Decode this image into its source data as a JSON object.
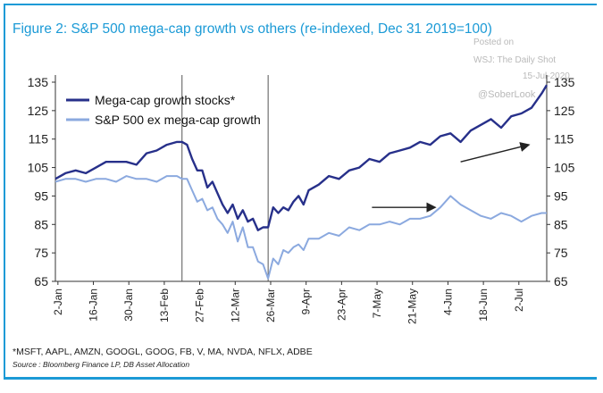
{
  "title": "Figure 2: S&P 500 mega-cap growth vs others (re-indexed, Dec 31 2019=100)",
  "watermark": {
    "posted": "Posted on",
    "outlet": "WSJ: The Daily Shot",
    "date": "15-Jul-2020",
    "handle": "@SoberLook"
  },
  "footnote": "*MSFT, AAPL, AMZN, GOOGL, GOOG, FB, V, MA, NVDA, NFLX, ADBE",
  "source": "Source : Bloomberg Finance LP, DB Asset Allocation",
  "colors": {
    "accent": "#1b9ad6",
    "mega": "#27308a",
    "ex": "#8ba9df"
  },
  "chart_data": {
    "type": "line",
    "ylim": [
      65,
      135
    ],
    "yticks": [
      65,
      75,
      85,
      95,
      105,
      115,
      125,
      135
    ],
    "xlim": [
      0,
      194
    ],
    "xticks": [
      {
        "day": 1,
        "label": "2-Jan"
      },
      {
        "day": 15,
        "label": "16-Jan"
      },
      {
        "day": 29,
        "label": "30-Jan"
      },
      {
        "day": 43,
        "label": "13-Feb"
      },
      {
        "day": 57,
        "label": "27-Feb"
      },
      {
        "day": 71,
        "label": "12-Mar"
      },
      {
        "day": 85,
        "label": "26-Mar"
      },
      {
        "day": 99,
        "label": "9-Apr"
      },
      {
        "day": 113,
        "label": "23-Apr"
      },
      {
        "day": 127,
        "label": "7-May"
      },
      {
        "day": 141,
        "label": "21-May"
      },
      {
        "day": 155,
        "label": "4-Jun"
      },
      {
        "day": 169,
        "label": "18-Jun"
      },
      {
        "day": 183,
        "label": "2-Jul"
      }
    ],
    "vlines": [
      50,
      84
    ],
    "series": [
      {
        "name": "Mega-cap growth stocks*",
        "x": [
          0,
          4,
          8,
          12,
          16,
          20,
          24,
          28,
          32,
          36,
          40,
          44,
          48,
          50,
          52,
          54,
          56,
          58,
          60,
          62,
          64,
          66,
          68,
          70,
          72,
          74,
          76,
          78,
          80,
          82,
          84,
          86,
          88,
          90,
          92,
          94,
          96,
          98,
          100,
          104,
          108,
          112,
          116,
          120,
          124,
          128,
          132,
          136,
          140,
          144,
          148,
          152,
          156,
          160,
          164,
          168,
          172,
          176,
          180,
          184,
          188,
          192,
          194
        ],
        "values": [
          101,
          103,
          104,
          103,
          105,
          107,
          107,
          107,
          106,
          110,
          111,
          113,
          114,
          114,
          113,
          108,
          104,
          104,
          98,
          100,
          96,
          92,
          89,
          92,
          87,
          90,
          86,
          87,
          83,
          84,
          84,
          91,
          89,
          91,
          90,
          93,
          95,
          92,
          97,
          99,
          102,
          101,
          104,
          105,
          108,
          107,
          110,
          111,
          112,
          114,
          113,
          116,
          117,
          114,
          118,
          120,
          122,
          119,
          123,
          124,
          126,
          131,
          134
        ]
      },
      {
        "name": "S&P 500 ex mega-cap growth",
        "x": [
          0,
          4,
          8,
          12,
          16,
          20,
          24,
          28,
          32,
          36,
          40,
          44,
          48,
          50,
          52,
          54,
          56,
          58,
          60,
          62,
          64,
          66,
          68,
          70,
          72,
          74,
          76,
          78,
          80,
          82,
          84,
          86,
          88,
          90,
          92,
          94,
          96,
          98,
          100,
          104,
          108,
          112,
          116,
          120,
          124,
          128,
          132,
          136,
          140,
          144,
          148,
          152,
          156,
          160,
          164,
          168,
          172,
          176,
          180,
          184,
          188,
          192,
          194
        ],
        "values": [
          100,
          101,
          101,
          100,
          101,
          101,
          100,
          102,
          101,
          101,
          100,
          102,
          102,
          101,
          101,
          97,
          93,
          94,
          90,
          91,
          87,
          85,
          82,
          86,
          79,
          84,
          77,
          77,
          72,
          71,
          66,
          73,
          71,
          76,
          75,
          77,
          78,
          76,
          80,
          80,
          82,
          81,
          84,
          83,
          85,
          85,
          86,
          85,
          87,
          87,
          88,
          91,
          95,
          92,
          90,
          88,
          87,
          89,
          88,
          86,
          88,
          89,
          89
        ]
      }
    ],
    "annotations": [
      {
        "type": "arrow",
        "from": [
          160,
          107
        ],
        "to": [
          187,
          113
        ]
      },
      {
        "type": "arrow",
        "from": [
          125,
          91
        ],
        "to": [
          150,
          91
        ]
      }
    ]
  }
}
